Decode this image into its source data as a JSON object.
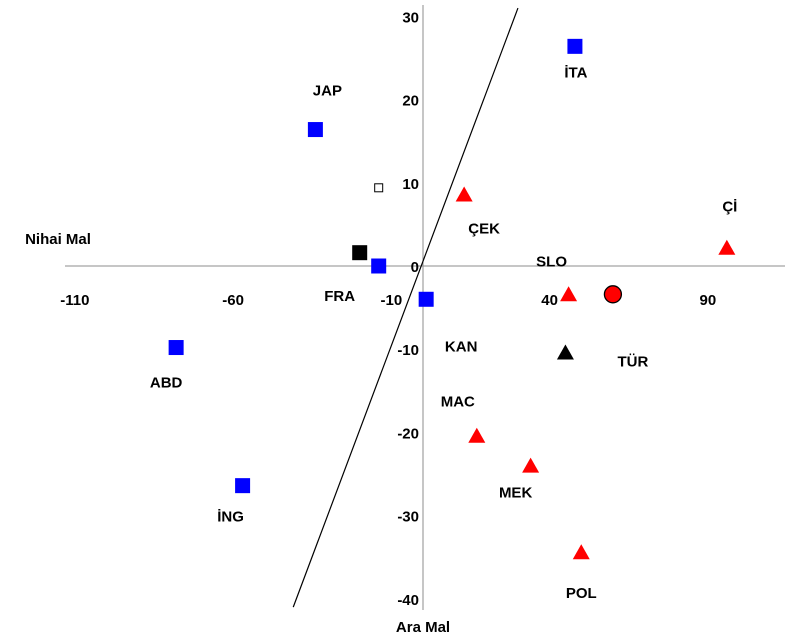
{
  "chart_data": {
    "type": "scatter",
    "title": "",
    "xlabel": "Ara Mal",
    "ylabel": "Nihai Mal",
    "xlim": [
      -132,
      118
    ],
    "ylim": [
      -43,
      31
    ],
    "x_ticks": [
      {
        "value": -110,
        "label": "-110"
      },
      {
        "value": -60,
        "label": "-60"
      },
      {
        "value": -10,
        "label": "-10"
      },
      {
        "value": 40,
        "label": "40"
      },
      {
        "value": 90,
        "label": "90"
      }
    ],
    "y_ticks": [
      {
        "value": 30,
        "label": "30"
      },
      {
        "value": 20,
        "label": "20"
      },
      {
        "value": 10,
        "label": "10"
      },
      {
        "value": 0,
        "label": "0"
      },
      {
        "value": -10,
        "label": "-10"
      },
      {
        "value": -20,
        "label": "-20"
      },
      {
        "value": -30,
        "label": "-30"
      },
      {
        "value": -40,
        "label": "-40"
      }
    ],
    "trend_line": {
      "x": [
        -41,
        30
      ],
      "y": [
        -41,
        31
      ]
    },
    "series": [
      {
        "marker": "square",
        "color": "#0000ff",
        "points": [
          {
            "label": "İTA",
            "x": 48,
            "y": 26.4
          },
          {
            "label": "JAP",
            "x": -34,
            "y": 16.4
          },
          {
            "label": "FRA",
            "x": -14,
            "y": 0
          },
          {
            "label": "KAN",
            "x": 1,
            "y": -4
          },
          {
            "label": "ABD",
            "x": -78,
            "y": -9.8
          },
          {
            "label": "İNG",
            "x": -57,
            "y": -26.4
          }
        ]
      },
      {
        "marker": "triangle",
        "color": "#ff0000",
        "points": [
          {
            "label": "ÇEK",
            "x": 13,
            "y": 8.6
          },
          {
            "label": "Çİ",
            "x": 96,
            "y": 2.2
          },
          {
            "label": "SLO",
            "x": 46,
            "y": -3.4
          },
          {
            "label": "MAC",
            "x": 17,
            "y": -20.4
          },
          {
            "label": "MEK",
            "x": 34,
            "y": -24
          },
          {
            "label": "POL",
            "x": 50,
            "y": -34.4
          }
        ]
      },
      {
        "marker": "circle",
        "color": "#ff0000",
        "points": [
          {
            "label": "TÜR",
            "x": 60,
            "y": -3.4
          }
        ]
      },
      {
        "marker": "square",
        "color": "#000000",
        "points": [
          {
            "label": "",
            "x": -20,
            "y": 1.6
          }
        ]
      },
      {
        "marker": "triangle",
        "color": "#000000",
        "points": [
          {
            "label": "",
            "x": 45,
            "y": -10.4
          }
        ]
      },
      {
        "marker": "square-hollow",
        "color": "#000000",
        "points": [
          {
            "label": "",
            "x": -14,
            "y": 9.4
          }
        ]
      }
    ]
  }
}
